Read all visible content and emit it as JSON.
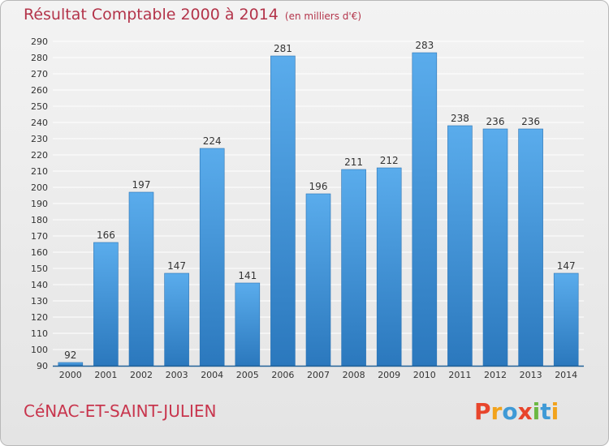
{
  "header": {
    "title": "Résultat Comptable 2000 à 2014",
    "subtitle": "(en milliers d'€)"
  },
  "footer": {
    "place": "CéNAC-ET-SAINT-JULIEN",
    "logo_text": "Proxiti",
    "logo_colors": [
      "#e8452c",
      "#f2a31c",
      "#3f9ad6",
      "#e8452c",
      "#6bb842",
      "#3f9ad6",
      "#f2a31c"
    ]
  },
  "colors": {
    "bar_top": "#5aacec",
    "bar_bottom": "#2b78bd",
    "grid": "#ffffff",
    "axis": "#1f5f96"
  },
  "chart_data": {
    "type": "bar",
    "title": "Résultat Comptable 2000 à 2014",
    "subtitle": "(en milliers d'€)",
    "categories": [
      "2000",
      "2001",
      "2002",
      "2003",
      "2004",
      "2005",
      "2006",
      "2007",
      "2008",
      "2009",
      "2010",
      "2011",
      "2012",
      "2013",
      "2014"
    ],
    "values": [
      92,
      166,
      197,
      147,
      224,
      141,
      281,
      196,
      211,
      212,
      283,
      238,
      236,
      236,
      147
    ],
    "ylim": [
      90,
      290
    ],
    "yticks": [
      90,
      100,
      110,
      120,
      130,
      140,
      150,
      160,
      170,
      180,
      190,
      200,
      210,
      220,
      230,
      240,
      250,
      260,
      270,
      280,
      290
    ],
    "grid": true,
    "xlabel": "",
    "ylabel": ""
  }
}
